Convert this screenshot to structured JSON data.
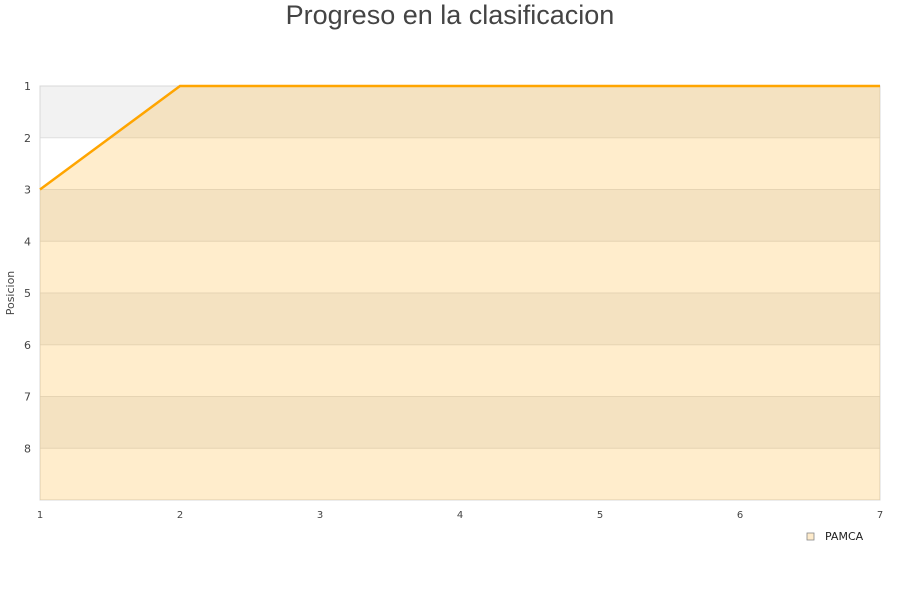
{
  "chart_data": {
    "type": "area",
    "title": "Progreso en la clasificacion",
    "xlabel": "",
    "ylabel": "Posicion",
    "x": [
      1,
      2,
      3,
      4,
      5,
      6,
      7
    ],
    "series": [
      {
        "name": "PAMCA",
        "values": [
          3,
          1,
          1,
          1,
          1,
          1,
          1
        ],
        "color": "#ffa500"
      }
    ],
    "xlim": [
      1,
      7
    ],
    "ylim": [
      1,
      9
    ],
    "y_inverted": true,
    "xticks": [
      "1",
      "2",
      "3",
      "4",
      "5",
      "6",
      "7"
    ],
    "yticks": [
      "1",
      "2",
      "3",
      "4",
      "5",
      "6",
      "7",
      "8"
    ],
    "grid": "alternating horizontal bands",
    "legend": "bottom-right"
  }
}
